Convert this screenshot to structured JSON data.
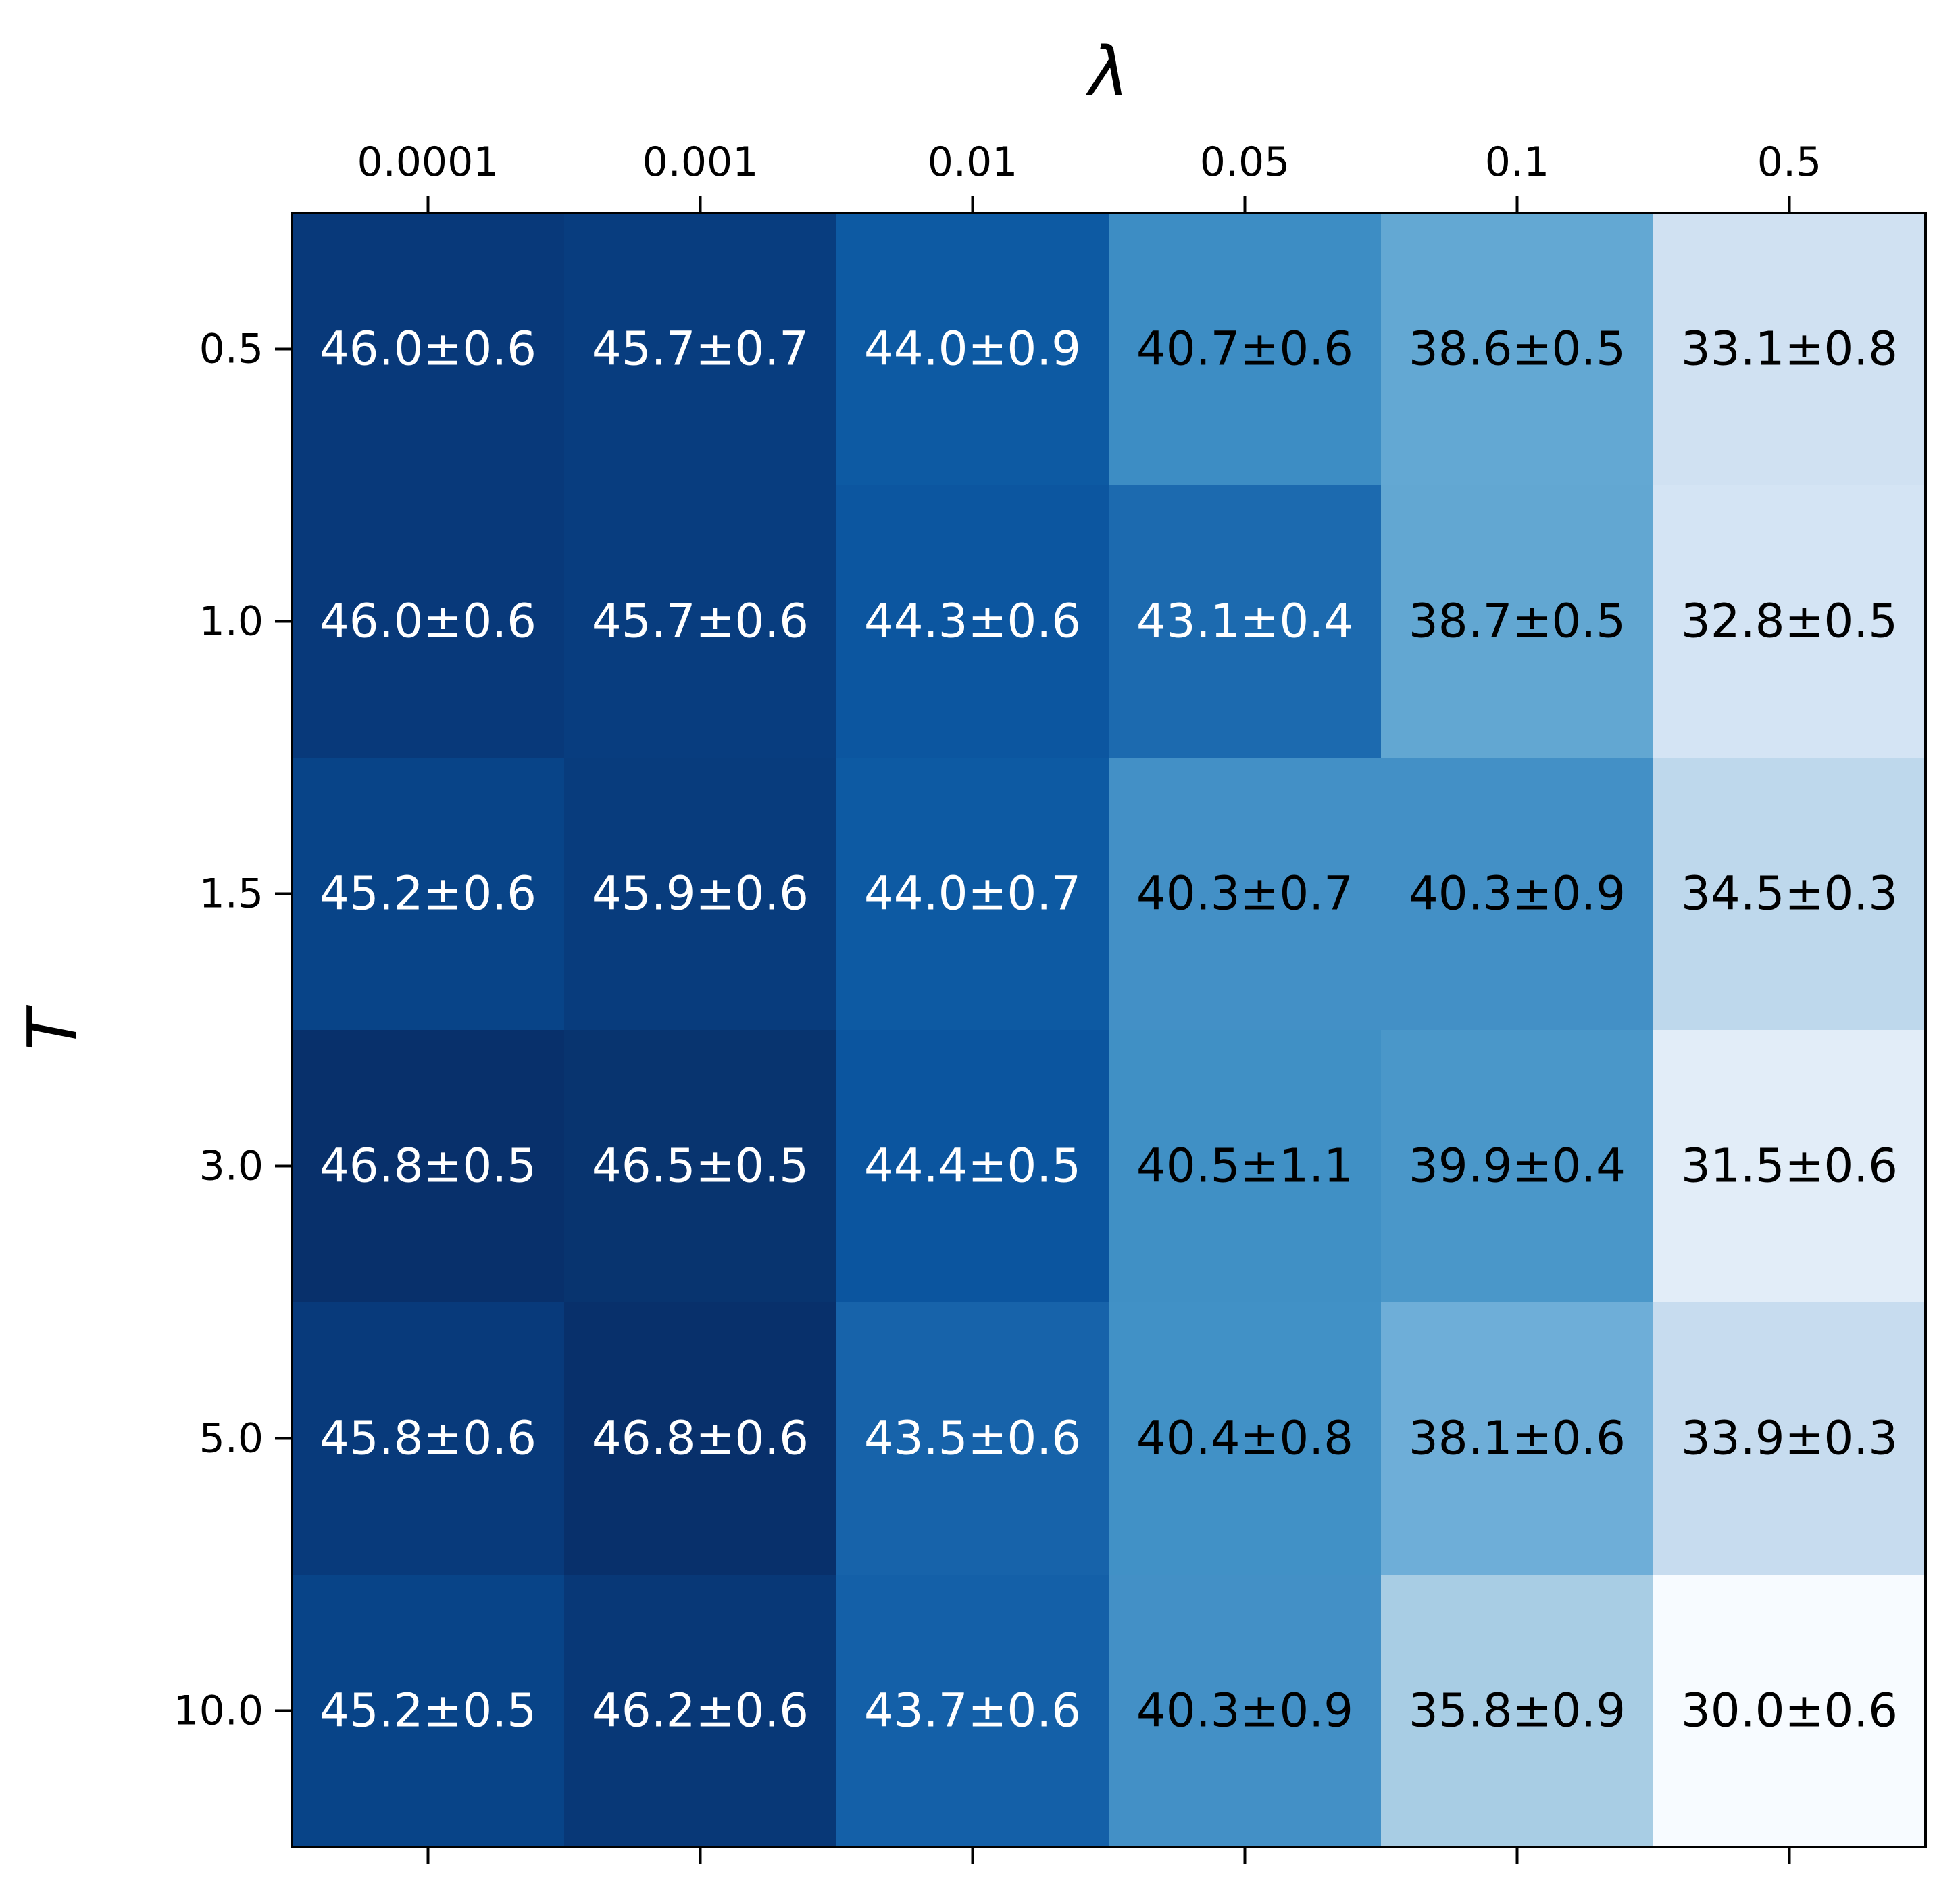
{
  "chart_data": {
    "type": "heatmap",
    "title": "",
    "xlabel": "λ",
    "ylabel": "T",
    "x_categories": [
      "0.0001",
      "0.001",
      "0.01",
      "0.05",
      "0.1",
      "0.5"
    ],
    "y_categories": [
      "0.5",
      "1.0",
      "1.5",
      "3.0",
      "5.0",
      "10.0"
    ],
    "x_ticks_position": "top-labels, ticks top and bottom",
    "colormap": "Blues",
    "values": [
      [
        46.0,
        45.7,
        44.0,
        40.7,
        38.6,
        33.1
      ],
      [
        46.0,
        45.7,
        44.3,
        43.1,
        38.7,
        32.8
      ],
      [
        45.2,
        45.9,
        44.0,
        40.3,
        40.3,
        34.5
      ],
      [
        46.8,
        46.5,
        44.4,
        40.5,
        39.9,
        31.5
      ],
      [
        45.8,
        46.8,
        43.5,
        40.4,
        38.1,
        33.9
      ],
      [
        45.2,
        46.2,
        43.7,
        40.3,
        35.8,
        30.0
      ]
    ],
    "errors": [
      [
        0.6,
        0.7,
        0.9,
        0.6,
        0.5,
        0.8
      ],
      [
        0.6,
        0.6,
        0.6,
        0.4,
        0.5,
        0.5
      ],
      [
        0.6,
        0.6,
        0.7,
        0.7,
        0.9,
        0.3
      ],
      [
        0.5,
        0.5,
        0.5,
        1.1,
        0.4,
        0.6
      ],
      [
        0.6,
        0.6,
        0.6,
        0.8,
        0.6,
        0.3
      ],
      [
        0.5,
        0.6,
        0.6,
        0.9,
        0.9,
        0.6
      ]
    ],
    "cell_labels": [
      [
        "46.0±0.6",
        "45.7±0.7",
        "44.0±0.9",
        "40.7±0.6",
        "38.6±0.5",
        "33.1±0.8"
      ],
      [
        "46.0±0.6",
        "45.7±0.6",
        "44.3±0.6",
        "43.1±0.4",
        "38.7±0.5",
        "32.8±0.5"
      ],
      [
        "45.2±0.6",
        "45.9±0.6",
        "44.0±0.7",
        "40.3±0.7",
        "40.3±0.9",
        "34.5±0.3"
      ],
      [
        "46.8±0.5",
        "46.5±0.5",
        "44.4±0.5",
        "40.5±1.1",
        "39.9±0.4",
        "31.5±0.6"
      ],
      [
        "45.8±0.6",
        "46.8±0.6",
        "43.5±0.6",
        "40.4±0.8",
        "38.1±0.6",
        "33.9±0.3"
      ],
      [
        "45.2±0.5",
        "46.2±0.6",
        "43.7±0.6",
        "40.3±0.9",
        "35.8±0.9",
        "30.0±0.6"
      ]
    ],
    "cell_colors": [
      [
        "#08397a",
        "#083d7f",
        "#0d5aa3",
        "#3d8dc4",
        "#63a8d3",
        "#d0e1f2"
      ],
      [
        "#08397a",
        "#083d7f",
        "#0c56a0",
        "#1c6aaf",
        "#62a7d2",
        "#d4e4f4"
      ],
      [
        "#084488",
        "#083c7d",
        "#0d5aa3",
        "#4390c6",
        "#4390c6",
        "#bed8ec"
      ],
      [
        "#08306b",
        "#08346f",
        "#0b559f",
        "#4090c5",
        "#4a97c9",
        "#e2edf8"
      ],
      [
        "#083a7b",
        "#08306b",
        "#1763aa",
        "#4191c6",
        "#6eaed8",
        "#c7dcef"
      ],
      [
        "#084488",
        "#083877",
        "#1460a8",
        "#4390c6",
        "#a8cde4",
        "#f7fbff"
      ]
    ],
    "text_colors": [
      [
        "#ffffff",
        "#ffffff",
        "#ffffff",
        "#000000",
        "#000000",
        "#000000"
      ],
      [
        "#ffffff",
        "#ffffff",
        "#ffffff",
        "#ffffff",
        "#000000",
        "#000000"
      ],
      [
        "#ffffff",
        "#ffffff",
        "#ffffff",
        "#000000",
        "#000000",
        "#000000"
      ],
      [
        "#ffffff",
        "#ffffff",
        "#ffffff",
        "#000000",
        "#000000",
        "#000000"
      ],
      [
        "#ffffff",
        "#ffffff",
        "#ffffff",
        "#000000",
        "#000000",
        "#000000"
      ],
      [
        "#ffffff",
        "#ffffff",
        "#ffffff",
        "#000000",
        "#000000",
        "#000000"
      ]
    ]
  }
}
